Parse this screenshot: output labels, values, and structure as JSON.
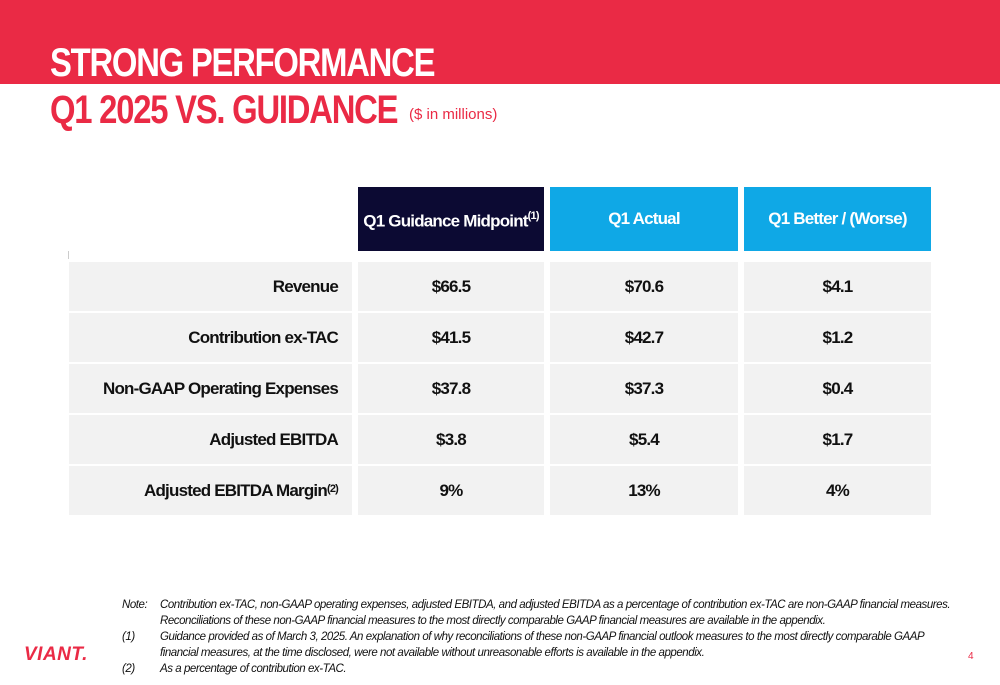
{
  "header": {
    "title_line1": "STRONG PERFORMANCE",
    "title_line2": "Q1 2025 VS. GUIDANCE",
    "units": "($ in millions)"
  },
  "table": {
    "columns": [
      {
        "label": "Q1 Guidance Midpoint",
        "footnote": "(1)"
      },
      {
        "label": "Q1 Actual"
      },
      {
        "label": "Q1 Better / (Worse)"
      }
    ],
    "rows": [
      {
        "label": "Revenue",
        "guidance": "$66.5",
        "actual": "$70.6",
        "diff": "$4.1"
      },
      {
        "label": "Contribution ex-TAC",
        "guidance": "$41.5",
        "actual": "$42.7",
        "diff": "$1.2"
      },
      {
        "label": "Non-GAAP Operating Expenses",
        "guidance": "$37.8",
        "actual": "$37.3",
        "diff": "$0.4"
      },
      {
        "label": "Adjusted EBITDA",
        "guidance": "$3.8",
        "actual": "$5.4",
        "diff": "$1.7"
      },
      {
        "label": "Adjusted EBITDA Margin",
        "footnote": "(2)",
        "guidance": "9%",
        "actual": "13%",
        "diff": "4%"
      }
    ]
  },
  "notes": [
    {
      "key": "Note:",
      "text": "Contribution ex-TAC, non-GAAP operating expenses, adjusted EBITDA, and adjusted EBITDA as a percentage of contribution ex-TAC are non-GAAP financial measures. Reconciliations of these non-GAAP financial measures to the most directly comparable GAAP financial measures are available in the appendix."
    },
    {
      "key": "(1)",
      "text": "Guidance provided as of March 3, 2025. An explanation of why reconciliations of these non-GAAP financial outlook measures to the most directly comparable GAAP financial measures, at the time disclosed, were not available without unreasonable efforts is available in the appendix."
    },
    {
      "key": "(2)",
      "text": "As a percentage of contribution ex-TAC."
    }
  ],
  "footer": {
    "logo": "VIANT.",
    "page_number": "4"
  },
  "colors": {
    "brand_red": "#ea2a45",
    "navy": "#0c0a33",
    "cyan": "#0fa8e6",
    "row_bg": "#f2f2f2"
  }
}
